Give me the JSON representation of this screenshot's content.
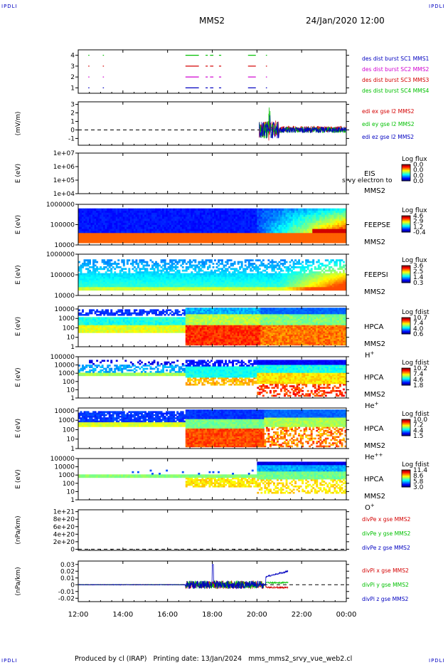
{
  "header": {
    "corner_left": "IPDLI",
    "corner_right": "IPDLI",
    "corner_bottom_left": "IPDLI",
    "corner_bottom_right": "IPDLI",
    "spacecraft": "MMS2",
    "date": "24/Jan/2020 12:00"
  },
  "footer": {
    "text": "Produced by cl (IRAP)   Printing date: 13/Jan/2024   mms_mms2_srvy_vue_web2.cl"
  },
  "time_axis": {
    "ticks": [
      "12:00",
      "14:00",
      "16:00",
      "18:00",
      "20:00",
      "22:00",
      "00:00"
    ],
    "range_hours": [
      12,
      24
    ]
  },
  "colors": {
    "red": "#d40000",
    "green": "#00c000",
    "blue": "#0000c0",
    "magenta": "#d000d0"
  },
  "chart_data": [
    {
      "type": "line",
      "id": "burst",
      "yticks": [
        "1",
        "2",
        "3",
        "4"
      ],
      "ylim": [
        0.5,
        4.5
      ],
      "legend": [
        {
          "label": "des dist burst SC1 MMS1",
          "color": "#0000c0"
        },
        {
          "label": "des dist burst SC2 MMS2",
          "color": "#d000d0"
        },
        {
          "label": "des dist burst SC3 MMS3",
          "color": "#d40000"
        },
        {
          "label": "des dist burst SC4 MMS4",
          "color": "#00c000"
        }
      ],
      "segments": [
        {
          "level": 4,
          "start": 12.45,
          "end": 12.5,
          "color": "#00c000"
        },
        {
          "level": 4,
          "start": 13.1,
          "end": 13.15,
          "color": "#00c000"
        },
        {
          "level": 4,
          "start": 16.8,
          "end": 17.4,
          "color": "#00c000"
        },
        {
          "level": 4,
          "start": 17.7,
          "end": 17.8,
          "color": "#00c000"
        },
        {
          "level": 4,
          "start": 17.9,
          "end": 18.05,
          "color": "#00c000"
        },
        {
          "level": 4,
          "start": 18.3,
          "end": 18.4,
          "color": "#00c000"
        },
        {
          "level": 4,
          "start": 19.6,
          "end": 19.95,
          "color": "#00c000"
        },
        {
          "level": 4,
          "start": 20.4,
          "end": 20.45,
          "color": "#00c000"
        },
        {
          "level": 3,
          "start": 12.45,
          "end": 12.5,
          "color": "#d40000"
        },
        {
          "level": 3,
          "start": 13.1,
          "end": 13.15,
          "color": "#d40000"
        },
        {
          "level": 3,
          "start": 16.8,
          "end": 17.4,
          "color": "#d40000"
        },
        {
          "level": 3,
          "start": 17.7,
          "end": 17.8,
          "color": "#d40000"
        },
        {
          "level": 3,
          "start": 17.9,
          "end": 18.05,
          "color": "#d40000"
        },
        {
          "level": 3,
          "start": 18.3,
          "end": 18.4,
          "color": "#d40000"
        },
        {
          "level": 3,
          "start": 19.6,
          "end": 19.95,
          "color": "#d40000"
        },
        {
          "level": 3,
          "start": 20.4,
          "end": 20.45,
          "color": "#d40000"
        },
        {
          "level": 2,
          "start": 12.45,
          "end": 12.5,
          "color": "#d000d0"
        },
        {
          "level": 2,
          "start": 13.1,
          "end": 13.15,
          "color": "#d000d0"
        },
        {
          "level": 2,
          "start": 16.8,
          "end": 17.4,
          "color": "#d000d0"
        },
        {
          "level": 2,
          "start": 17.7,
          "end": 17.8,
          "color": "#d000d0"
        },
        {
          "level": 2,
          "start": 17.9,
          "end": 18.05,
          "color": "#d000d0"
        },
        {
          "level": 2,
          "start": 18.3,
          "end": 18.4,
          "color": "#d000d0"
        },
        {
          "level": 2,
          "start": 19.6,
          "end": 19.95,
          "color": "#d000d0"
        },
        {
          "level": 2,
          "start": 20.4,
          "end": 20.45,
          "color": "#d000d0"
        },
        {
          "level": 1,
          "start": 12.45,
          "end": 12.5,
          "color": "#0000c0"
        },
        {
          "level": 1,
          "start": 13.1,
          "end": 13.15,
          "color": "#0000c0"
        },
        {
          "level": 1,
          "start": 16.8,
          "end": 17.4,
          "color": "#0000c0"
        },
        {
          "level": 1,
          "start": 17.7,
          "end": 17.8,
          "color": "#0000c0"
        },
        {
          "level": 1,
          "start": 17.9,
          "end": 18.05,
          "color": "#0000c0"
        },
        {
          "level": 1,
          "start": 18.3,
          "end": 18.4,
          "color": "#0000c0"
        },
        {
          "level": 1,
          "start": 19.6,
          "end": 19.95,
          "color": "#0000c0"
        },
        {
          "level": 1,
          "start": 20.4,
          "end": 20.45,
          "color": "#0000c0"
        }
      ]
    },
    {
      "type": "line",
      "id": "efield",
      "ylabel": "(mV/m)",
      "yticks": [
        "-1",
        "0",
        "1",
        "2",
        "3"
      ],
      "ytick_values": [
        -1,
        0,
        1,
        2,
        3
      ],
      "ylim": [
        -1.8,
        3.3
      ],
      "dashed_zero": true,
      "data_range_hours": [
        20.1,
        24
      ],
      "legend": [
        {
          "label": "edi ex gse l2 MMS2",
          "color": "#d40000"
        },
        {
          "label": "edi ey gse l2 MMS2",
          "color": "#00c000"
        },
        {
          "label": "edi ez gse l2 MMS2",
          "color": "#0000c0"
        }
      ]
    },
    {
      "type": "heatmap",
      "id": "eis",
      "ylabel": "E (eV)",
      "yticks": [
        "1e+04",
        "1e+05",
        "1e+06",
        "1e+07"
      ],
      "ylim_log": [
        4,
        7
      ],
      "right_labels": [
        "EIS",
        "MMS2"
      ],
      "overlay_text": "srvy electron to",
      "colorbar": {
        "title": "Log flux",
        "ticks": [
          "0.0",
          "0.0",
          "0.0",
          "0.0"
        ]
      },
      "data": "empty"
    },
    {
      "type": "heatmap",
      "id": "feepse",
      "ylabel": "E (eV)",
      "yticks": [
        "10000",
        "100000",
        "1000000"
      ],
      "ylim_log": [
        4,
        6
      ],
      "right_labels": [
        "FEEPSE",
        "MMS2"
      ],
      "colorbar": {
        "title": "Log flux",
        "ticks": [
          "4.6",
          "2.9",
          "1.2",
          "-0.4"
        ]
      }
    },
    {
      "type": "heatmap",
      "id": "feepsi",
      "ylabel": "E (eV)",
      "yticks": [
        "10000",
        "100000",
        "1000000"
      ],
      "ylim_log": [
        4,
        6
      ],
      "right_labels": [
        "FEEPSI",
        "MMS2"
      ],
      "colorbar": {
        "title": "Log flux",
        "ticks": [
          "3.6",
          "2.5",
          "1.4",
          "0.3"
        ]
      }
    },
    {
      "type": "heatmap",
      "id": "hpca_h",
      "ylabel": "E (eV)",
      "yticks": [
        "1",
        "10",
        "100",
        "1000",
        "10000"
      ],
      "ylim_log": [
        0,
        4.3
      ],
      "right_labels": [
        "HPCA",
        "MMS2"
      ],
      "species": "H",
      "species_charge": "+",
      "colorbar": {
        "title": "Log fdist",
        "ticks": [
          "10.7",
          "7.4",
          "4.0",
          "0.6"
        ]
      }
    },
    {
      "type": "heatmap",
      "id": "hpca_he",
      "ylabel": "E (eV)",
      "yticks": [
        "1",
        "10",
        "100",
        "1000",
        "10000",
        "100000"
      ],
      "ylim_log": [
        0,
        5
      ],
      "right_labels": [
        "HPCA",
        "MMS2"
      ],
      "species": "He",
      "species_charge": "+",
      "colorbar": {
        "title": "Log fdist",
        "ticks": [
          "10.2",
          "7.4",
          "4.6",
          "1.8"
        ]
      }
    },
    {
      "type": "heatmap",
      "id": "hpca_he2",
      "ylabel": "E (eV)",
      "yticks": [
        "1",
        "10",
        "100",
        "1000",
        "10000"
      ],
      "ylim_log": [
        0,
        4.3
      ],
      "right_labels": [
        "HPCA",
        "MMS2"
      ],
      "species": "He",
      "species_charge": "++",
      "colorbar": {
        "title": "Log fdist",
        "ticks": [
          "10.0",
          "7.2",
          "4.4",
          "1.5"
        ]
      }
    },
    {
      "type": "heatmap",
      "id": "hpca_o",
      "ylabel": "E (eV)",
      "yticks": [
        "1",
        "10",
        "100",
        "1000",
        "10000",
        "100000"
      ],
      "ylim_log": [
        0,
        5
      ],
      "right_labels": [
        "HPCA",
        "MMS2"
      ],
      "species": "O",
      "species_charge": "+",
      "colorbar": {
        "title": "Log fdist",
        "ticks": [
          "11.4",
          "8.6",
          "5.8",
          "3.0"
        ]
      }
    },
    {
      "type": "line",
      "id": "divpe",
      "ylabel": "(nPa/km)",
      "yticks": [
        "0",
        "2e+20",
        "4e+20",
        "6e+20",
        "8e+20",
        "1e+21"
      ],
      "ytick_values": [
        0,
        2e+20,
        4e+20,
        6e+20,
        8e+20,
        1e+21
      ],
      "ylim": [
        -3e+19,
        1.05e+21
      ],
      "dashed_zero": true,
      "legend": [
        {
          "label": "divPe x gse MMS2",
          "color": "#d40000"
        },
        {
          "label": "divPe y gse MMS2",
          "color": "#00c000"
        },
        {
          "label": "divPe z gse MMS2",
          "color": "#0000c0"
        }
      ]
    },
    {
      "type": "line",
      "id": "divpi",
      "ylabel": "(nPa/km)",
      "yticks": [
        "-0.02",
        "-0.01",
        "0",
        "0.01",
        "0.02",
        "0.03"
      ],
      "ytick_values": [
        -0.02,
        -0.01,
        0,
        0.01,
        0.02,
        0.03
      ],
      "ylim": [
        -0.025,
        0.035
      ],
      "dashed_zero": true,
      "data_range_hours": [
        12,
        21.4
      ],
      "legend": [
        {
          "label": "divPi x gse MMS2",
          "color": "#d40000"
        },
        {
          "label": "divPi y gse MMS2",
          "color": "#00c000"
        },
        {
          "label": "divPi z gse MMS2",
          "color": "#0000c0"
        }
      ]
    }
  ]
}
